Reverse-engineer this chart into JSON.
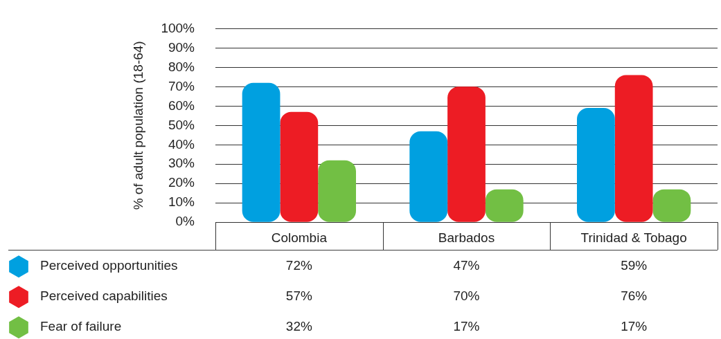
{
  "chart_data": {
    "type": "bar",
    "ylabel": "% of adult population (18-64)",
    "categories": [
      "Colombia",
      "Barbados",
      "Trinidad & Tobago"
    ],
    "series": [
      {
        "name": "Perceived opportunities",
        "color": "#00a0e0",
        "values": [
          72,
          47,
          59
        ],
        "value_labels": [
          "72%",
          "47%",
          "59%"
        ]
      },
      {
        "name": "Perceived capabilities",
        "color": "#ed1c24",
        "values": [
          57,
          70,
          76
        ],
        "value_labels": [
          "57%",
          "70%",
          "76%"
        ]
      },
      {
        "name": "Fear of failure",
        "color": "#72bf44",
        "values": [
          32,
          17,
          17
        ],
        "value_labels": [
          "32%",
          "17%",
          "17%"
        ]
      }
    ],
    "ylim": [
      0,
      100
    ],
    "yticks": [
      {
        "value": 0,
        "label": "0%"
      },
      {
        "value": 10,
        "label": "10%"
      },
      {
        "value": 20,
        "label": "20%"
      },
      {
        "value": 30,
        "label": "30%"
      },
      {
        "value": 40,
        "label": "40%"
      },
      {
        "value": 50,
        "label": "50%"
      },
      {
        "value": 60,
        "label": "60%"
      },
      {
        "value": 70,
        "label": "70%"
      },
      {
        "value": 80,
        "label": "80%"
      },
      {
        "value": 90,
        "label": "90%"
      },
      {
        "value": 100,
        "label": "100%"
      }
    ],
    "grid": "y",
    "legend": "bottom"
  }
}
